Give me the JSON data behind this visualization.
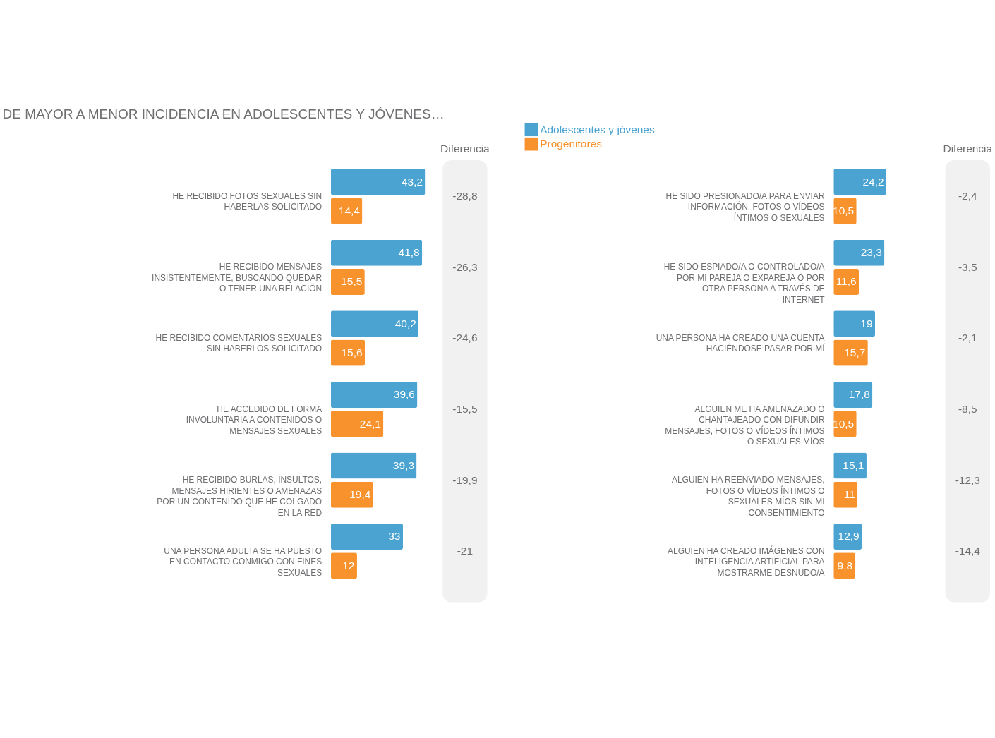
{
  "chart_data": [
    {
      "type": "bar",
      "orientation": "horizontal",
      "title": "DE MAYOR A MENOR INCIDENCIA EN ADOLESCENTES Y JÓVENES…",
      "legend": "top right",
      "categories": [
        "HE RECIBIDO FOTOS SEXUALES SIN HABERLAS SOLICITADO",
        "HE RECIBIDO MENSAJES INSISTENTEMENTE, BUSCANDO QUEDAR O TENER UNA RELACIÓN",
        "HE RECIBIDO COMENTARIOS SEXUALES SIN HABERLOS SOLICITADO",
        "HE ACCEDIDO DE FORMA INVOLUNTARIA A CONTENIDOS O MENSAJES SEXUALES",
        "HE RECIBIDO BURLAS, INSULTOS, MENSAJES HIRIENTES O AMENAZAS POR UN CONTENIDO QUE HE COLGADO EN LA RED",
        "UNA PERSONA ADULTA SE HA PUESTO EN CONTACTO CONMIGO CON FINES SEXUALES"
      ],
      "series": [
        {
          "name": "Adolescentes y jóvenes",
          "color": "#4aa3d0",
          "values": [
            43.2,
            41.8,
            40.2,
            39.6,
            39.3,
            33
          ],
          "value_labels": [
            "43,2",
            "41,8",
            "40,2",
            "39,6",
            "39,3",
            "33"
          ]
        },
        {
          "name": "Progenitores",
          "color": "#f7922d",
          "values": [
            14.4,
            15.5,
            15.6,
            24.1,
            19.4,
            12
          ],
          "value_labels": [
            "14,4",
            "15,5",
            "15,6",
            "24,1",
            "19,4",
            "12"
          ]
        }
      ],
      "annotations": [
        "Diferencia",
        "-28,8",
        "-26,3",
        "-24,6",
        "-15,5",
        "-19,9",
        "-21"
      ]
    },
    {
      "type": "bar",
      "orientation": "horizontal",
      "categories": [
        "HE SIDO PRESIONADO/A PARA ENVIAR INFORMACIÓN, FOTOS O VÍDEOS ÍNTIMOS O SEXUALES",
        "HE SIDO ESPIADO/A O CONTROLADO/A POR MI PAREJA O EXPAREJA O POR OTRA PERSONA A TRAVÉS DE INTERNET",
        "UNA PERSONA HA CREADO UNA CUENTA HACIÉNDOSE PASAR POR MÍ",
        "ALGUIEN ME HA AMENAZADO O CHANTAJEADO CON DIFUNDIR MENSAJES, FOTOS O VÍDEOS ÍNTIMOS O SEXUALES MÍOS",
        "ALGUIEN HA REENVIADO MENSAJES, FOTOS O VÍDEOS ÍNTIMOS O SEXUALES MÍOS SIN MI CONSENTIMIENTO",
        "ALGUIEN HA CREADO IMÁGENES CON INTELIGENCIA ARTIFICIAL PARA MOSTRARME DESNUDO/A"
      ],
      "series": [
        {
          "name": "Adolescentes y jóvenes",
          "color": "#4aa3d0",
          "values": [
            24.2,
            23.3,
            19,
            17.8,
            15.1,
            12.9
          ],
          "value_labels": [
            "24,2",
            "23,3",
            "19",
            "17,8",
            "15,1",
            "12,9"
          ]
        },
        {
          "name": "Progenitores",
          "color": "#f7922d",
          "values": [
            10.5,
            11.6,
            15.7,
            10.5,
            11,
            9.8
          ],
          "value_labels": [
            "10,5",
            "11,6",
            "15,7",
            "10,5",
            "11",
            "9,8"
          ]
        }
      ],
      "annotations": [
        "Diferencia",
        "-2,4",
        "-3,5",
        "-2,1",
        "-8,5",
        "-12,3",
        "-14,4"
      ]
    }
  ]
}
